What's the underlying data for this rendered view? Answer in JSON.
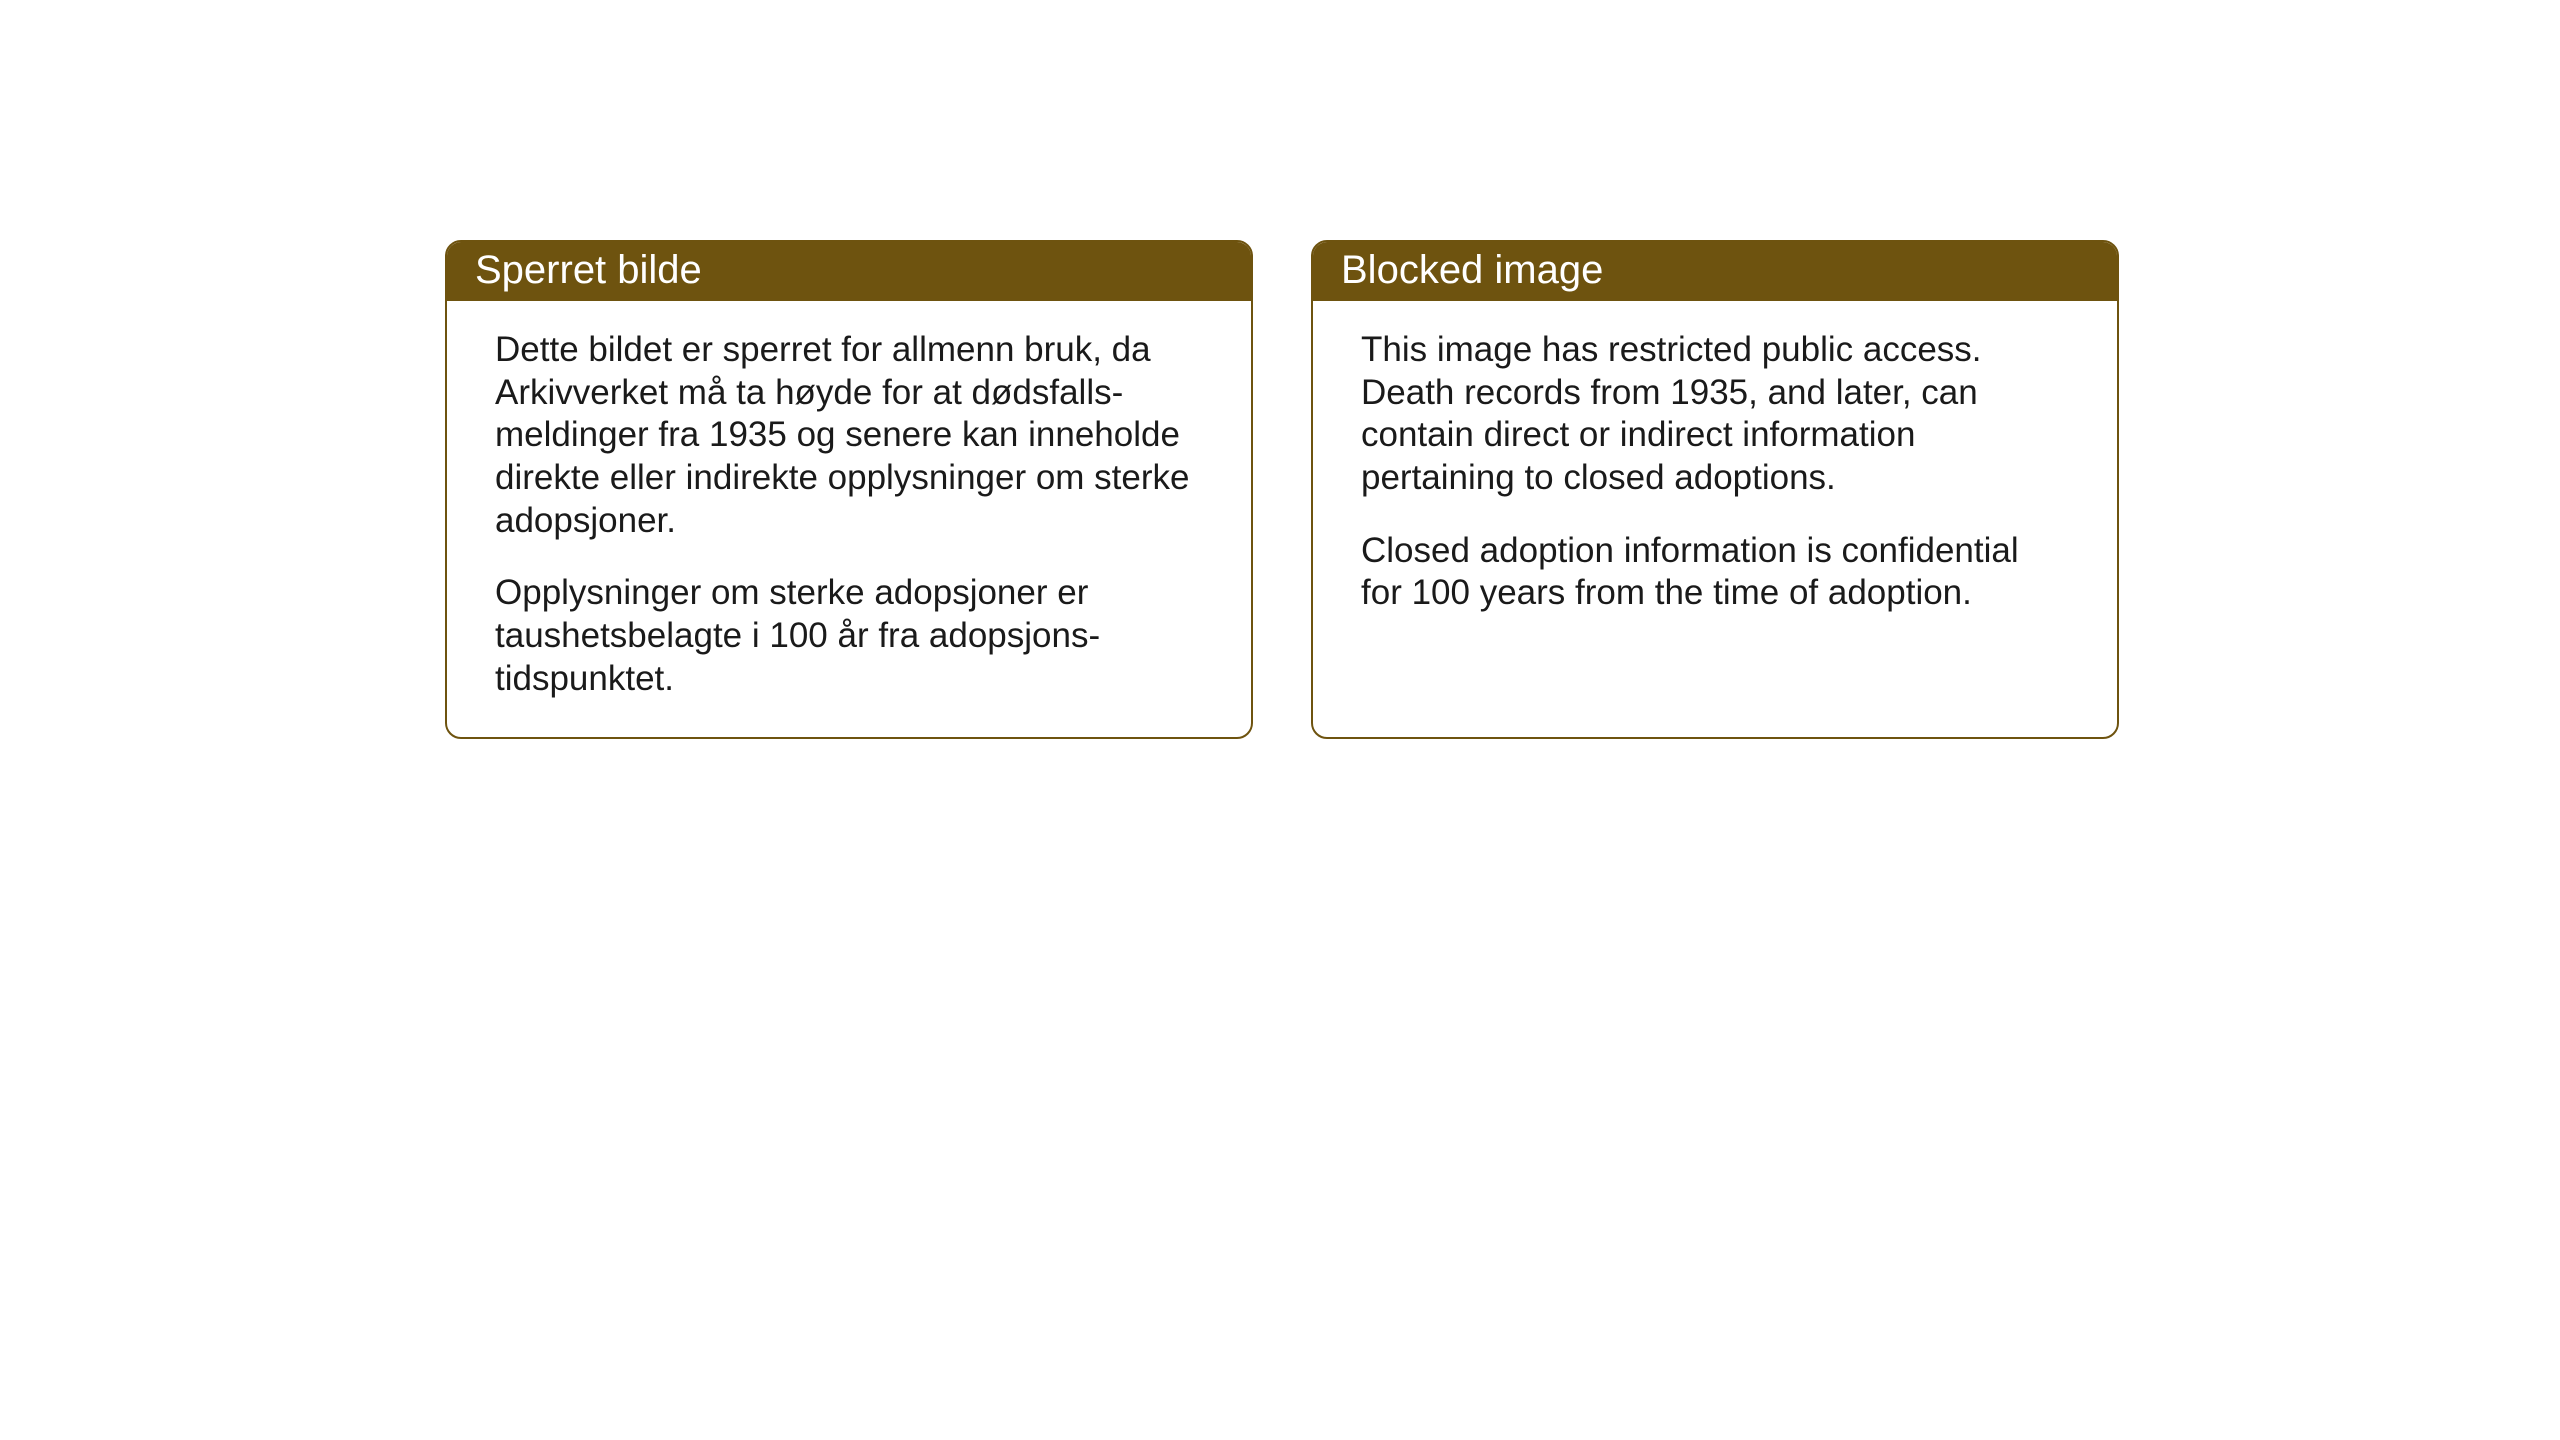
{
  "layout": {
    "background_color": "#ffffff",
    "card_border_color": "#6e530f",
    "card_border_width": 2,
    "card_border_radius": 16,
    "header_background_color": "#6e530f",
    "header_text_color": "#ffffff",
    "body_text_color": "#1a1a1a",
    "header_font_size": 40,
    "body_font_size": 35
  },
  "cards": {
    "norwegian": {
      "title": "Sperret bilde",
      "paragraph1": "Dette bildet er sperret for allmenn bruk, da Arkivverket må ta høyde for at dødsfalls-meldinger fra 1935 og senere kan inneholde direkte eller indirekte opplysninger om sterke adopsjoner.",
      "paragraph2": "Opplysninger om sterke adopsjoner er taushetsbelagte i 100 år fra adopsjons-tidspunktet."
    },
    "english": {
      "title": "Blocked image",
      "paragraph1": "This image has restricted public access. Death records from 1935, and later, can contain direct or indirect information pertaining to closed adoptions.",
      "paragraph2": "Closed adoption information is confidential for 100 years from the time of adoption."
    }
  }
}
